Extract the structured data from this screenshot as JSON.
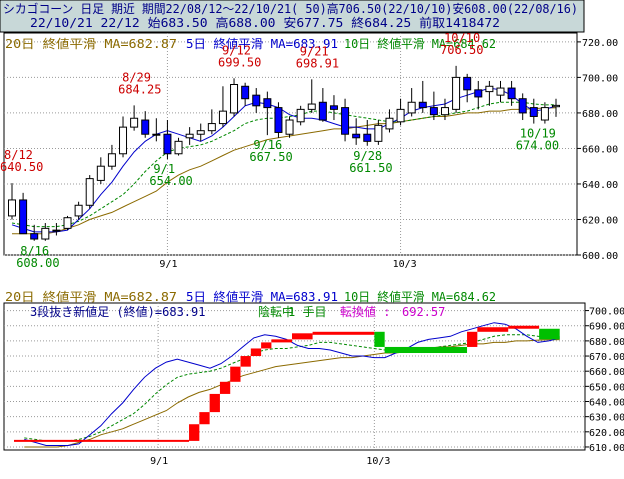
{
  "header": {
    "line1": "シカゴコーン 日足 期近 期間22/08/12～22/10/21( 50)高706.50(22/10/10)安608.00(22/08/16)",
    "line2": "22/10/21 22/12 始683.50 高688.00 安677.75 終684.25 前取1418472"
  },
  "colors": {
    "background": "#ffffff",
    "frame": "#000000",
    "grid": "#9a9a9a",
    "header_bg": "#c8d8d8",
    "header_text": "#000088",
    "up_candle": "#ffffff",
    "down_candle": "#0000ff",
    "ma20": "#8b6a00",
    "ma5": "#0000cc",
    "ma10": "#008800",
    "label_high": "#cc0000",
    "label_low": "#008800",
    "brick_up": "#ff0000",
    "brick_down": "#00c000",
    "reversal": "#cc00cc"
  },
  "chart_data": [
    {
      "type": "candlestick",
      "name": "price",
      "x": [
        "08/12",
        "08/15",
        "08/16",
        "08/17",
        "08/18",
        "08/19",
        "08/22",
        "08/23",
        "08/24",
        "08/25",
        "08/26",
        "08/29",
        "08/30",
        "08/31",
        "09/01",
        "09/02",
        "09/06",
        "09/07",
        "09/08",
        "09/09",
        "09/12",
        "09/13",
        "09/14",
        "09/15",
        "09/16",
        "09/19",
        "09/20",
        "09/21",
        "09/22",
        "09/23",
        "09/26",
        "09/27",
        "09/28",
        "09/29",
        "09/30",
        "10/03",
        "10/04",
        "10/05",
        "10/06",
        "10/07",
        "10/10",
        "10/11",
        "10/12",
        "10/13",
        "10/14",
        "10/17",
        "10/18",
        "10/19",
        "10/20",
        "10/21"
      ],
      "open": [
        622.0,
        631.0,
        612.0,
        609.0,
        614.0,
        615.0,
        622.0,
        628.0,
        642.0,
        650.0,
        657.0,
        672.0,
        676.0,
        668.0,
        668.0,
        657.0,
        666.0,
        668.0,
        670.0,
        674.0,
        680.0,
        695.0,
        690.0,
        688.0,
        683.0,
        668.0,
        675.0,
        682.0,
        686.0,
        684.0,
        683.0,
        668.0,
        668.0,
        664.0,
        671.0,
        675.0,
        680.0,
        686.0,
        683.0,
        679.0,
        682.0,
        700.0,
        693.0,
        692.0,
        690.0,
        694.0,
        688.0,
        683.0,
        676.0,
        683.5
      ],
      "high": [
        640.5,
        635.0,
        617.0,
        618.0,
        618.0,
        622.0,
        630.0,
        645.0,
        655.0,
        662.0,
        678.0,
        684.25,
        681.0,
        677.0,
        676.0,
        666.0,
        672.0,
        674.0,
        682.0,
        695.0,
        699.5,
        697.0,
        694.0,
        692.0,
        686.0,
        678.0,
        684.0,
        698.91,
        694.0,
        690.0,
        688.0,
        677.0,
        676.0,
        676.0,
        682.0,
        688.0,
        694.0,
        698.0,
        692.0,
        688.0,
        706.5,
        702.0,
        698.0,
        698.0,
        698.0,
        698.0,
        691.0,
        688.0,
        686.0,
        688.0
      ],
      "low": [
        620.0,
        612.0,
        608.0,
        608.0,
        611.0,
        614.0,
        620.0,
        626.0,
        640.0,
        648.0,
        655.0,
        670.0,
        666.0,
        664.0,
        654.0,
        656.0,
        662.0,
        664.0,
        668.0,
        672.0,
        678.0,
        684.0,
        680.0,
        667.5,
        666.0,
        666.0,
        673.0,
        680.0,
        675.0,
        676.0,
        664.0,
        662.0,
        661.5,
        662.0,
        669.0,
        673.0,
        678.0,
        680.0,
        676.0,
        676.0,
        680.0,
        686.0,
        682.0,
        684.0,
        686.0,
        684.0,
        676.0,
        674.0,
        674.0,
        677.75
      ],
      "close": [
        631.0,
        612.0,
        609.0,
        615.0,
        614.0,
        621.0,
        628.0,
        643.0,
        650.0,
        657.0,
        672.0,
        677.0,
        668.0,
        668.0,
        657.0,
        664.0,
        668.0,
        670.0,
        674.0,
        681.0,
        696.0,
        688.0,
        684.0,
        683.0,
        669.0,
        676.0,
        682.0,
        685.0,
        676.0,
        682.0,
        668.0,
        666.0,
        664.0,
        673.0,
        677.0,
        682.0,
        686.0,
        683.0,
        679.0,
        683.0,
        700.0,
        693.0,
        689.0,
        695.0,
        694.0,
        688.0,
        680.0,
        678.0,
        683.0,
        684.25
      ],
      "ma20": [
        612,
        612,
        612,
        612,
        613,
        615,
        617,
        620,
        622,
        624,
        627,
        630,
        633,
        636,
        641,
        645,
        648,
        650,
        653,
        656,
        659,
        661,
        663,
        665,
        666,
        667,
        668,
        669,
        670,
        671,
        671,
        672,
        673,
        674,
        674,
        675,
        676,
        677,
        678,
        678,
        679,
        680,
        680,
        681,
        681,
        682,
        682,
        682.5,
        682.7,
        682.87
      ],
      "ma5": [
        617,
        615,
        613,
        613,
        613,
        614,
        620,
        626,
        634,
        641,
        650,
        658,
        664,
        668,
        670,
        668,
        666,
        664,
        667,
        672,
        678,
        684,
        686,
        685,
        683,
        679,
        677,
        677,
        676,
        674,
        672,
        672,
        671,
        671,
        674,
        677,
        681,
        683,
        684,
        685,
        688,
        690,
        692,
        694,
        693,
        690,
        685,
        681,
        682,
        683.91
      ],
      "ma10": [
        618,
        617,
        616,
        616,
        616,
        617,
        619,
        622,
        626,
        630,
        634,
        640,
        647,
        653,
        658,
        660,
        661,
        662,
        664,
        667,
        670,
        674,
        676,
        677,
        677,
        678,
        679,
        681,
        681,
        680,
        679,
        678,
        677,
        676,
        675,
        675,
        676,
        677,
        678,
        679,
        680,
        681,
        683,
        685,
        686,
        686,
        686,
        685,
        684.5,
        684.62
      ],
      "labels_high": [
        {
          "i": 0,
          "date": "8/12",
          "value": "640.50"
        },
        {
          "i": 11,
          "date": "8/29",
          "value": "684.25"
        },
        {
          "i": 20,
          "date": "9/12",
          "value": "699.50"
        },
        {
          "i": 27,
          "date": "9/21",
          "value": "698.91"
        },
        {
          "i": 40,
          "date": "10/10",
          "value": "706.50"
        }
      ],
      "labels_low": [
        {
          "i": 2,
          "date": "8/16",
          "value": "608.00"
        },
        {
          "i": 14,
          "date": "9/1",
          "value": "654.00"
        },
        {
          "i": 23,
          "date": "9/16",
          "value": "667.50"
        },
        {
          "i": 32,
          "date": "9/28",
          "value": "661.50"
        },
        {
          "i": 47,
          "date": "10/19",
          "value": "674.00"
        }
      ],
      "ylim": [
        600,
        725
      ],
      "yticks": [
        600,
        620,
        640,
        660,
        680,
        700,
        720
      ],
      "xtick_labels": [
        {
          "i": 14,
          "label": "9/1"
        },
        {
          "i": 35,
          "label": "10/3"
        }
      ],
      "legend": [
        {
          "label": "20日 終値平滑 MA=682.87",
          "color_key": "ma20"
        },
        {
          "label": "5日 終値平滑 MA=683.91",
          "color_key": "ma5"
        },
        {
          "label": "10日 終値平滑 MA=684.62",
          "color_key": "ma10"
        }
      ],
      "grid": true
    },
    {
      "type": "three-line-break",
      "name": "three-line-break",
      "subtitle": "3段抜き新値足 (終値)=683.91",
      "status": "陰転中",
      "step": "1 手目",
      "reversal_label": "転換値 :",
      "reversal_value": "692.57",
      "blocks": [
        {
          "dir": "up",
          "from": 614,
          "to": 625,
          "x1": 17,
          "x2": 18
        },
        {
          "dir": "up",
          "from": 625,
          "to": 633,
          "x1": 18,
          "x2": 19
        },
        {
          "dir": "up",
          "from": 633,
          "to": 645,
          "x1": 19,
          "x2": 20
        },
        {
          "dir": "up",
          "from": 645,
          "to": 653,
          "x1": 20,
          "x2": 21
        },
        {
          "dir": "up",
          "from": 653,
          "to": 663,
          "x1": 21,
          "x2": 22
        },
        {
          "dir": "up",
          "from": 663,
          "to": 670,
          "x1": 22,
          "x2": 23
        },
        {
          "dir": "up",
          "from": 670,
          "to": 675,
          "x1": 23,
          "x2": 24
        },
        {
          "dir": "up",
          "from": 675,
          "to": 679,
          "x1": 24,
          "x2": 25
        },
        {
          "dir": "up",
          "from": 679,
          "to": 681,
          "x1": 25,
          "x2": 27
        },
        {
          "dir": "up",
          "from": 681,
          "to": 685,
          "x1": 27,
          "x2": 29
        },
        {
          "dir": "up",
          "from": 685,
          "to": 686,
          "x1": 29,
          "x2": 35
        },
        {
          "dir": "down",
          "from": 686,
          "to": 676,
          "x1": 35,
          "x2": 36
        },
        {
          "dir": "down",
          "from": 676,
          "to": 672,
          "x1": 36,
          "x2": 44
        },
        {
          "dir": "up",
          "from": 676,
          "to": 686,
          "x1": 44,
          "x2": 45
        },
        {
          "dir": "up",
          "from": 686,
          "to": 689,
          "x1": 45,
          "x2": 48
        },
        {
          "dir": "up",
          "from": 689,
          "to": 690,
          "x1": 48,
          "x2": 51
        },
        {
          "dir": "down",
          "from": 688,
          "to": 681,
          "x1": 51,
          "x2": 53
        }
      ],
      "x_start_line": {
        "value": 614,
        "from": 0,
        "to": 17
      },
      "ylim": [
        608,
        705
      ],
      "yticks": [
        610,
        620,
        630,
        640,
        650,
        660,
        670,
        680,
        690,
        700
      ],
      "xtick_labels": [
        {
          "i": 14,
          "label": "9/1"
        },
        {
          "i": 35,
          "label": "10/3"
        }
      ],
      "legend": [
        {
          "label": "20日 終値平滑 MA=682.87",
          "color_key": "ma20"
        },
        {
          "label": "5日 終値平滑 MA=683.91",
          "color_key": "ma5"
        },
        {
          "label": "10日 終値平滑 MA=684.62",
          "color_key": "ma10"
        }
      ],
      "grid": true
    }
  ]
}
